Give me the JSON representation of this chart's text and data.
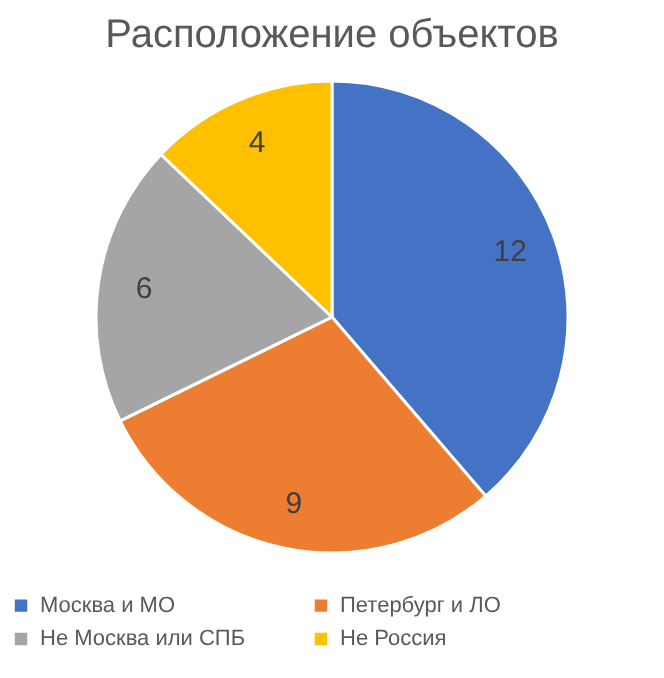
{
  "chart_data": {
    "type": "pie",
    "title": "Расположение объектов",
    "categories": [
      "Москва и МО",
      "Петербург и ЛО",
      "Не Москва или СПБ",
      "Не Россия"
    ],
    "values": [
      12,
      9,
      6,
      4
    ],
    "colors": [
      "#4472c4",
      "#ed7d31",
      "#a5a5a5",
      "#ffc000"
    ],
    "data_labels": true,
    "legend": "bottom"
  }
}
